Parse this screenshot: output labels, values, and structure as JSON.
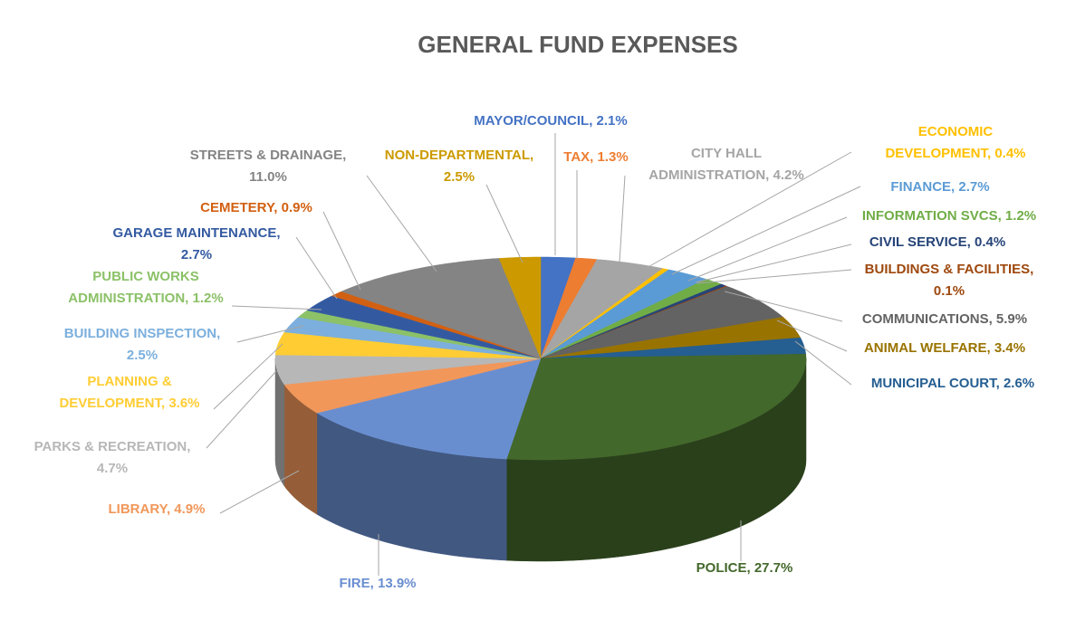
{
  "chart_data": {
    "type": "pie",
    "title": "GENERAL FUND EXPENSES",
    "legend": "none",
    "slices": [
      {
        "key": "mayor",
        "label": "MAYOR/COUNCIL",
        "value": 2.1,
        "display": "2.1%",
        "color": "#4472c4"
      },
      {
        "key": "tax",
        "label": "TAX",
        "value": 1.3,
        "display": "1.3%",
        "color": "#ed7d31"
      },
      {
        "key": "cityhall",
        "label": "CITY HALL ADMINISTRATION",
        "value": 4.2,
        "display": "4.2%",
        "color": "#a5a5a5"
      },
      {
        "key": "econ",
        "label": "ECONOMIC DEVELOPMENT",
        "value": 0.4,
        "display": "0.4%",
        "color": "#ffc000"
      },
      {
        "key": "finance",
        "label": "FINANCE",
        "value": 2.7,
        "display": "2.7%",
        "color": "#5b9bd5"
      },
      {
        "key": "infosvcs",
        "label": "INFORMATION SVCS",
        "value": 1.2,
        "display": "1.2%",
        "color": "#70ad47"
      },
      {
        "key": "civil",
        "label": "CIVIL SERVICE",
        "value": 0.4,
        "display": "0.4%",
        "color": "#264478"
      },
      {
        "key": "buildings",
        "label": "BUILDINGS & FACILITIES",
        "value": 0.1,
        "display": "0.1%",
        "color": "#9e480e"
      },
      {
        "key": "comms",
        "label": "COMMUNICATIONS",
        "value": 5.9,
        "display": "5.9%",
        "color": "#636363"
      },
      {
        "key": "animal",
        "label": "ANIMAL WELFARE",
        "value": 3.4,
        "display": "3.4%",
        "color": "#997300"
      },
      {
        "key": "court",
        "label": "MUNICIPAL COURT",
        "value": 2.6,
        "display": "2.6%",
        "color": "#255e91"
      },
      {
        "key": "police",
        "label": "POLICE",
        "value": 27.7,
        "display": "27.7%",
        "color": "#43682b"
      },
      {
        "key": "fire",
        "label": "FIRE",
        "value": 13.9,
        "display": "13.9%",
        "color": "#698ed0"
      },
      {
        "key": "library",
        "label": "LIBRARY",
        "value": 4.9,
        "display": "4.9%",
        "color": "#f1975a"
      },
      {
        "key": "parks",
        "label": "PARKS & RECREATION",
        "value": 4.7,
        "display": "4.7%",
        "color": "#b7b7b7"
      },
      {
        "key": "planning",
        "label": "PLANNING & DEVELOPMENT",
        "value": 3.6,
        "display": "3.6%",
        "color": "#ffcd33"
      },
      {
        "key": "bldginsp",
        "label": "BUILDING INSPECTION",
        "value": 2.5,
        "display": "2.5%",
        "color": "#7cafdd"
      },
      {
        "key": "pwadmin",
        "label": "PUBLIC WORKS ADMINISTRATION",
        "value": 1.2,
        "display": "1.2%",
        "color": "#8cc168"
      },
      {
        "key": "garage",
        "label": "GARAGE MAINTENANCE",
        "value": 2.7,
        "display": "2.7%",
        "color": "#335aa1"
      },
      {
        "key": "cemetery",
        "label": "CEMETERY",
        "value": 0.9,
        "display": "0.9%",
        "color": "#d26012"
      },
      {
        "key": "streets",
        "label": "STREETS & DRAINAGE",
        "value": 11.0,
        "display": "11.0%",
        "color": "#848484"
      },
      {
        "key": "nondept",
        "label": "NON-DEPARTMENTAL",
        "value": 2.5,
        "display": "2.5%",
        "color": "#cc9a00"
      }
    ]
  },
  "labels": {
    "mayor": {
      "lines": [
        "MAYOR/COUNCIL, 2.1%"
      ],
      "color": "#4472c4"
    },
    "tax": {
      "lines": [
        "TAX, 1.3%"
      ],
      "color": "#ed7d31"
    },
    "cityhall": {
      "lines": [
        "CITY HALL",
        "ADMINISTRATION, 4.2%"
      ],
      "color": "#a5a5a5"
    },
    "econ": {
      "lines": [
        "ECONOMIC",
        "DEVELOPMENT,  0.4%"
      ],
      "color": "#ffc000"
    },
    "finance": {
      "lines": [
        "FINANCE, 2.7%"
      ],
      "color": "#5b9bd5"
    },
    "infosvcs": {
      "lines": [
        "INFORMATION SVCS, 1.2%"
      ],
      "color": "#70ad47"
    },
    "civil": {
      "lines": [
        "CIVIL SERVICE, 0.4%"
      ],
      "color": "#264478"
    },
    "buildings": {
      "lines": [
        "BUILDINGS & FACILITIES,",
        "0.1%"
      ],
      "color": "#9e480e"
    },
    "comms": {
      "lines": [
        "COMMUNICATIONS, 5.9%"
      ],
      "color": "#636363"
    },
    "animal": {
      "lines": [
        "ANIMAL WELFARE, 3.4%"
      ],
      "color": "#997300"
    },
    "court": {
      "lines": [
        "MUNICIPAL COURT, 2.6%"
      ],
      "color": "#255e91"
    },
    "police": {
      "lines": [
        "POLICE, 27.7%"
      ],
      "color": "#43682b"
    },
    "fire": {
      "lines": [
        "FIRE, 13.9%"
      ],
      "color": "#698ed0"
    },
    "library": {
      "lines": [
        "LIBRARY, 4.9%"
      ],
      "color": "#f1975a"
    },
    "parks": {
      "lines": [
        "PARKS & RECREATION,",
        "4.7%"
      ],
      "color": "#b7b7b7"
    },
    "planning": {
      "lines": [
        "PLANNING &",
        "DEVELOPMENT,  3.6%"
      ],
      "color": "#ffcd33"
    },
    "bldginsp": {
      "lines": [
        "BUILDING INSPECTION,",
        "2.5%"
      ],
      "color": "#7cafdd"
    },
    "pwadmin": {
      "lines": [
        "PUBLIC WORKS",
        "ADMINISTRATION, 1.2%"
      ],
      "color": "#8cc168"
    },
    "garage": {
      "lines": [
        "GARAGE MAINTENANCE,",
        "2.7%"
      ],
      "color": "#335aa1"
    },
    "cemetery": {
      "lines": [
        "CEMETERY,  0.9%"
      ],
      "color": "#d26012"
    },
    "streets": {
      "lines": [
        "STREETS & DRAINAGE,",
        "11.0%"
      ],
      "color": "#848484"
    },
    "nondept": {
      "lines": [
        "NON-DEPARTMENTAL,",
        "2.5%"
      ],
      "color": "#cc9a00"
    }
  }
}
